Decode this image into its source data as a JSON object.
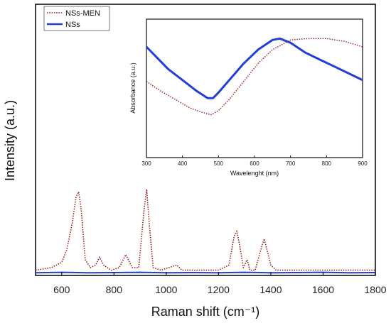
{
  "chart_data": [
    {
      "type": "line",
      "title": "",
      "xlabel": "Raman shift (cm⁻¹)",
      "ylabel": "Intensity (a.u.)",
      "xlim": [
        500,
        1800
      ],
      "ylim": [
        0,
        1.0
      ],
      "x_ticks": [
        "600",
        "800",
        "1000",
        "1200",
        "1400",
        "1600",
        "1800"
      ],
      "y_ticks_shown": false,
      "grid": false,
      "legend": "top-left",
      "series": [
        {
          "name": "NSs-MEN",
          "color": "#9b1b1b",
          "style": "dotted",
          "x": [
            500,
            560,
            600,
            620,
            640,
            655,
            665,
            675,
            690,
            710,
            730,
            745,
            760,
            790,
            820,
            845,
            870,
            895,
            915,
            925,
            935,
            950,
            980,
            1010,
            1040,
            1060,
            1100,
            1150,
            1200,
            1240,
            1260,
            1270,
            1280,
            1295,
            1310,
            1320,
            1340,
            1365,
            1375,
            1385,
            1400,
            1420,
            1480,
            1560,
            1650,
            1720,
            1800
          ],
          "y": [
            0.02,
            0.03,
            0.05,
            0.1,
            0.2,
            0.3,
            0.32,
            0.25,
            0.06,
            0.03,
            0.04,
            0.07,
            0.04,
            0.02,
            0.03,
            0.08,
            0.03,
            0.03,
            0.25,
            0.33,
            0.2,
            0.03,
            0.02,
            0.03,
            0.04,
            0.02,
            0.02,
            0.02,
            0.02,
            0.04,
            0.15,
            0.17,
            0.12,
            0.03,
            0.06,
            0.02,
            0.02,
            0.11,
            0.14,
            0.1,
            0.04,
            0.02,
            0.02,
            0.02,
            0.02,
            0.02,
            0.02
          ]
        },
        {
          "name": "NSs",
          "color": "#1f3fd6",
          "style": "solid",
          "x": [
            500,
            600,
            700,
            800,
            900,
            1000,
            1100,
            1200,
            1300,
            1400,
            1500,
            1600,
            1700,
            1800
          ],
          "y": [
            0.01,
            0.012,
            0.01,
            0.011,
            0.012,
            0.01,
            0.011,
            0.01,
            0.012,
            0.01,
            0.011,
            0.012,
            0.01,
            0.011
          ]
        }
      ]
    },
    {
      "type": "line",
      "title": "",
      "xlabel": "Wavelenght (nm)",
      "ylabel": "Absorbance (a.u.)",
      "xlim": [
        300,
        900
      ],
      "x_ticks": [
        "300",
        "400",
        "500",
        "600",
        "700",
        "800",
        "900"
      ],
      "y_ticks_shown": false,
      "grid": false,
      "series": [
        {
          "name": "NSs-MEN",
          "color": "#9b1b1b",
          "style": "dotted",
          "x": [
            300,
            340,
            380,
            420,
            450,
            480,
            500,
            530,
            570,
            610,
            650,
            700,
            750,
            800,
            850,
            900
          ],
          "y": [
            0.55,
            0.48,
            0.42,
            0.36,
            0.33,
            0.31,
            0.34,
            0.42,
            0.55,
            0.68,
            0.78,
            0.85,
            0.86,
            0.86,
            0.84,
            0.8
          ]
        },
        {
          "name": "NSs",
          "color": "#1f3fd6",
          "style": "solid",
          "x": [
            300,
            330,
            360,
            400,
            440,
            470,
            485,
            500,
            530,
            570,
            610,
            650,
            670,
            700,
            740,
            780,
            820,
            860,
            900
          ],
          "y": [
            0.8,
            0.72,
            0.64,
            0.56,
            0.48,
            0.43,
            0.43,
            0.47,
            0.56,
            0.68,
            0.78,
            0.85,
            0.86,
            0.83,
            0.76,
            0.71,
            0.66,
            0.61,
            0.56
          ]
        }
      ]
    }
  ]
}
